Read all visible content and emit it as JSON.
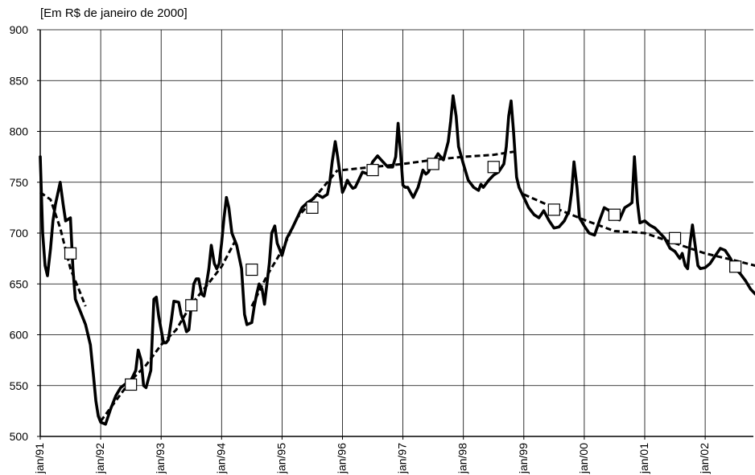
{
  "chart_data": {
    "type": "line",
    "title": "",
    "unit_note": "[Em R$ de janeiro de 2000]",
    "xlabel": "",
    "ylabel": "",
    "ylim": [
      500,
      900
    ],
    "yticks": [
      500,
      550,
      600,
      650,
      700,
      750,
      800,
      850,
      900
    ],
    "grid": true,
    "legend": "none",
    "x_tick_labels": [
      "jan/91",
      "jan/92",
      "jan/93",
      "jan/94",
      "jan/95",
      "jan/96",
      "jan/97",
      "jan/98",
      "jan/99",
      "jan/00",
      "jan/01",
      "jan/02"
    ],
    "x_tick_dates": [
      1991,
      1992,
      1993,
      1994,
      1995,
      1996,
      1997,
      1998,
      1999,
      2000,
      2001,
      2002
    ],
    "xlim": [
      1991.0,
      2002.83
    ],
    "series": [
      {
        "role": "monthly",
        "color": "#000000",
        "points": [
          [
            1991.0,
            775
          ],
          [
            1991.04,
            700
          ],
          [
            1991.08,
            668
          ],
          [
            1991.12,
            658
          ],
          [
            1991.17,
            685
          ],
          [
            1991.21,
            712
          ],
          [
            1991.25,
            728
          ],
          [
            1991.33,
            750
          ],
          [
            1991.38,
            728
          ],
          [
            1991.42,
            712
          ],
          [
            1991.5,
            715
          ],
          [
            1991.54,
            665
          ],
          [
            1991.58,
            635
          ],
          [
            1991.67,
            622
          ],
          [
            1991.75,
            610
          ],
          [
            1991.83,
            590
          ],
          [
            1991.88,
            560
          ],
          [
            1991.92,
            535
          ],
          [
            1991.96,
            520
          ],
          [
            1992.0,
            514
          ],
          [
            1992.08,
            512
          ],
          [
            1992.17,
            528
          ],
          [
            1992.25,
            540
          ],
          [
            1992.33,
            548
          ],
          [
            1992.42,
            552
          ],
          [
            1992.5,
            555
          ],
          [
            1992.58,
            565
          ],
          [
            1992.62,
            585
          ],
          [
            1992.67,
            575
          ],
          [
            1992.71,
            550
          ],
          [
            1992.75,
            548
          ],
          [
            1992.83,
            565
          ],
          [
            1992.88,
            635
          ],
          [
            1992.92,
            637
          ],
          [
            1992.96,
            618
          ],
          [
            1993.0,
            605
          ],
          [
            1993.04,
            592
          ],
          [
            1993.08,
            592
          ],
          [
            1993.12,
            595
          ],
          [
            1993.17,
            615
          ],
          [
            1993.21,
            633
          ],
          [
            1993.29,
            632
          ],
          [
            1993.33,
            620
          ],
          [
            1993.38,
            612
          ],
          [
            1993.42,
            603
          ],
          [
            1993.46,
            605
          ],
          [
            1993.5,
            630
          ],
          [
            1993.54,
            650
          ],
          [
            1993.58,
            655
          ],
          [
            1993.62,
            655
          ],
          [
            1993.67,
            640
          ],
          [
            1993.71,
            638
          ],
          [
            1993.75,
            650
          ],
          [
            1993.79,
            665
          ],
          [
            1993.83,
            688
          ],
          [
            1993.88,
            670
          ],
          [
            1993.92,
            665
          ],
          [
            1993.96,
            670
          ],
          [
            1994.0,
            690
          ],
          [
            1994.04,
            715
          ],
          [
            1994.08,
            735
          ],
          [
            1994.12,
            725
          ],
          [
            1994.17,
            700
          ],
          [
            1994.25,
            688
          ],
          [
            1994.33,
            665
          ],
          [
            1994.38,
            620
          ],
          [
            1994.42,
            610
          ],
          [
            1994.5,
            612
          ],
          [
            1994.54,
            628
          ],
          [
            1994.58,
            640
          ],
          [
            1994.62,
            650
          ],
          [
            1994.67,
            645
          ],
          [
            1994.71,
            630
          ],
          [
            1994.75,
            650
          ],
          [
            1994.79,
            670
          ],
          [
            1994.83,
            700
          ],
          [
            1994.88,
            707
          ],
          [
            1994.92,
            690
          ],
          [
            1995.0,
            678
          ],
          [
            1995.08,
            695
          ],
          [
            1995.17,
            705
          ],
          [
            1995.25,
            715
          ],
          [
            1995.33,
            725
          ],
          [
            1995.42,
            730
          ],
          [
            1995.5,
            733
          ],
          [
            1995.58,
            738
          ],
          [
            1995.67,
            735
          ],
          [
            1995.75,
            738
          ],
          [
            1995.79,
            750
          ],
          [
            1995.83,
            770
          ],
          [
            1995.88,
            790
          ],
          [
            1995.92,
            775
          ],
          [
            1996.0,
            740
          ],
          [
            1996.04,
            745
          ],
          [
            1996.08,
            752
          ],
          [
            1996.12,
            748
          ],
          [
            1996.17,
            744
          ],
          [
            1996.21,
            745
          ],
          [
            1996.25,
            750
          ],
          [
            1996.33,
            760
          ],
          [
            1996.42,
            758
          ],
          [
            1996.5,
            770
          ],
          [
            1996.58,
            776
          ],
          [
            1996.67,
            770
          ],
          [
            1996.75,
            765
          ],
          [
            1996.83,
            765
          ],
          [
            1996.88,
            775
          ],
          [
            1996.92,
            808
          ],
          [
            1996.96,
            780
          ],
          [
            1997.0,
            747
          ],
          [
            1997.04,
            745
          ],
          [
            1997.08,
            745
          ],
          [
            1997.17,
            735
          ],
          [
            1997.25,
            745
          ],
          [
            1997.33,
            762
          ],
          [
            1997.38,
            758
          ],
          [
            1997.42,
            760
          ],
          [
            1997.5,
            770
          ],
          [
            1997.58,
            778
          ],
          [
            1997.67,
            772
          ],
          [
            1997.75,
            790
          ],
          [
            1997.79,
            810
          ],
          [
            1997.83,
            835
          ],
          [
            1997.88,
            815
          ],
          [
            1997.92,
            785
          ],
          [
            1998.0,
            768
          ],
          [
            1998.08,
            752
          ],
          [
            1998.17,
            745
          ],
          [
            1998.25,
            742
          ],
          [
            1998.29,
            748
          ],
          [
            1998.33,
            745
          ],
          [
            1998.42,
            752
          ],
          [
            1998.5,
            757
          ],
          [
            1998.58,
            760
          ],
          [
            1998.67,
            768
          ],
          [
            1998.71,
            785
          ],
          [
            1998.75,
            815
          ],
          [
            1998.79,
            830
          ],
          [
            1998.83,
            800
          ],
          [
            1998.88,
            755
          ],
          [
            1998.92,
            745
          ],
          [
            1999.0,
            735
          ],
          [
            1999.08,
            725
          ],
          [
            1999.17,
            718
          ],
          [
            1999.25,
            715
          ],
          [
            1999.33,
            722
          ],
          [
            1999.42,
            712
          ],
          [
            1999.5,
            705
          ],
          [
            1999.58,
            706
          ],
          [
            1999.67,
            712
          ],
          [
            1999.75,
            722
          ],
          [
            1999.79,
            740
          ],
          [
            1999.83,
            770
          ],
          [
            1999.88,
            745
          ],
          [
            1999.92,
            715
          ],
          [
            2000.0,
            707
          ],
          [
            2000.08,
            700
          ],
          [
            2000.17,
            698
          ],
          [
            2000.25,
            712
          ],
          [
            2000.33,
            725
          ],
          [
            2000.42,
            722
          ],
          [
            2000.5,
            715
          ],
          [
            2000.58,
            713
          ],
          [
            2000.67,
            725
          ],
          [
            2000.75,
            728
          ],
          [
            2000.79,
            730
          ],
          [
            2000.83,
            775
          ],
          [
            2000.88,
            730
          ],
          [
            2000.92,
            710
          ],
          [
            2001.0,
            712
          ],
          [
            2001.08,
            708
          ],
          [
            2001.17,
            705
          ],
          [
            2001.25,
            700
          ],
          [
            2001.33,
            695
          ],
          [
            2001.42,
            685
          ],
          [
            2001.5,
            682
          ],
          [
            2001.58,
            675
          ],
          [
            2001.62,
            680
          ],
          [
            2001.67,
            668
          ],
          [
            2001.71,
            665
          ],
          [
            2001.75,
            690
          ],
          [
            2001.79,
            708
          ],
          [
            2001.83,
            690
          ],
          [
            2001.88,
            668
          ],
          [
            2001.92,
            665
          ],
          [
            2002.0,
            666
          ],
          [
            2002.08,
            670
          ],
          [
            2002.17,
            678
          ],
          [
            2002.25,
            685
          ],
          [
            2002.33,
            683
          ],
          [
            2002.42,
            675
          ],
          [
            2002.5,
            665
          ],
          [
            2002.58,
            660
          ],
          [
            2002.67,
            653
          ],
          [
            2002.75,
            645
          ],
          [
            2002.83,
            640
          ]
        ]
      },
      {
        "role": "trend",
        "color": "#000000",
        "segments": [
          [
            [
              1991.0,
              740
            ],
            [
              1991.17,
              733
            ],
            [
              1991.33,
              705
            ],
            [
              1991.5,
              665
            ],
            [
              1991.67,
              640
            ],
            [
              1991.75,
              628
            ]
          ],
          [
            [
              1992.0,
              515
            ],
            [
              1992.25,
              535
            ],
            [
              1992.5,
              555
            ],
            [
              1992.75,
              570
            ],
            [
              1993.0,
              590
            ],
            [
              1993.25,
              605
            ],
            [
              1993.5,
              630
            ],
            [
              1993.75,
              648
            ],
            [
              1994.0,
              667
            ],
            [
              1994.25,
              695
            ]
          ],
          [
            [
              1994.5,
              628
            ],
            [
              1994.75,
              658
            ],
            [
              1995.0,
              683
            ],
            [
              1995.25,
              715
            ],
            [
              1995.5,
              732
            ],
            [
              1995.75,
              750
            ],
            [
              1995.92,
              762
            ]
          ],
          [
            [
              1996.0,
              762
            ],
            [
              1996.5,
              765
            ],
            [
              1997.0,
              768
            ],
            [
              1997.5,
              772
            ],
            [
              1998.0,
              775
            ],
            [
              1998.5,
              777
            ],
            [
              1998.83,
              780
            ]
          ],
          [
            [
              1999.0,
              738
            ],
            [
              1999.5,
              725
            ],
            [
              2000.0,
              713
            ],
            [
              2000.5,
              702
            ],
            [
              2001.0,
              700
            ],
            [
              2001.5,
              690
            ],
            [
              2002.0,
              680
            ],
            [
              2002.5,
              673
            ],
            [
              2002.83,
              668
            ]
          ]
        ]
      },
      {
        "role": "annual-average",
        "marker": "square",
        "points": [
          [
            1991.5,
            680
          ],
          [
            1992.5,
            551
          ],
          [
            1993.5,
            629
          ],
          [
            1994.5,
            664
          ],
          [
            1995.5,
            725
          ],
          [
            1996.5,
            762
          ],
          [
            1997.5,
            768
          ],
          [
            1998.5,
            765
          ],
          [
            1999.5,
            723
          ],
          [
            2000.5,
            718
          ],
          [
            2001.5,
            695
          ],
          [
            2002.5,
            667
          ]
        ]
      }
    ]
  }
}
